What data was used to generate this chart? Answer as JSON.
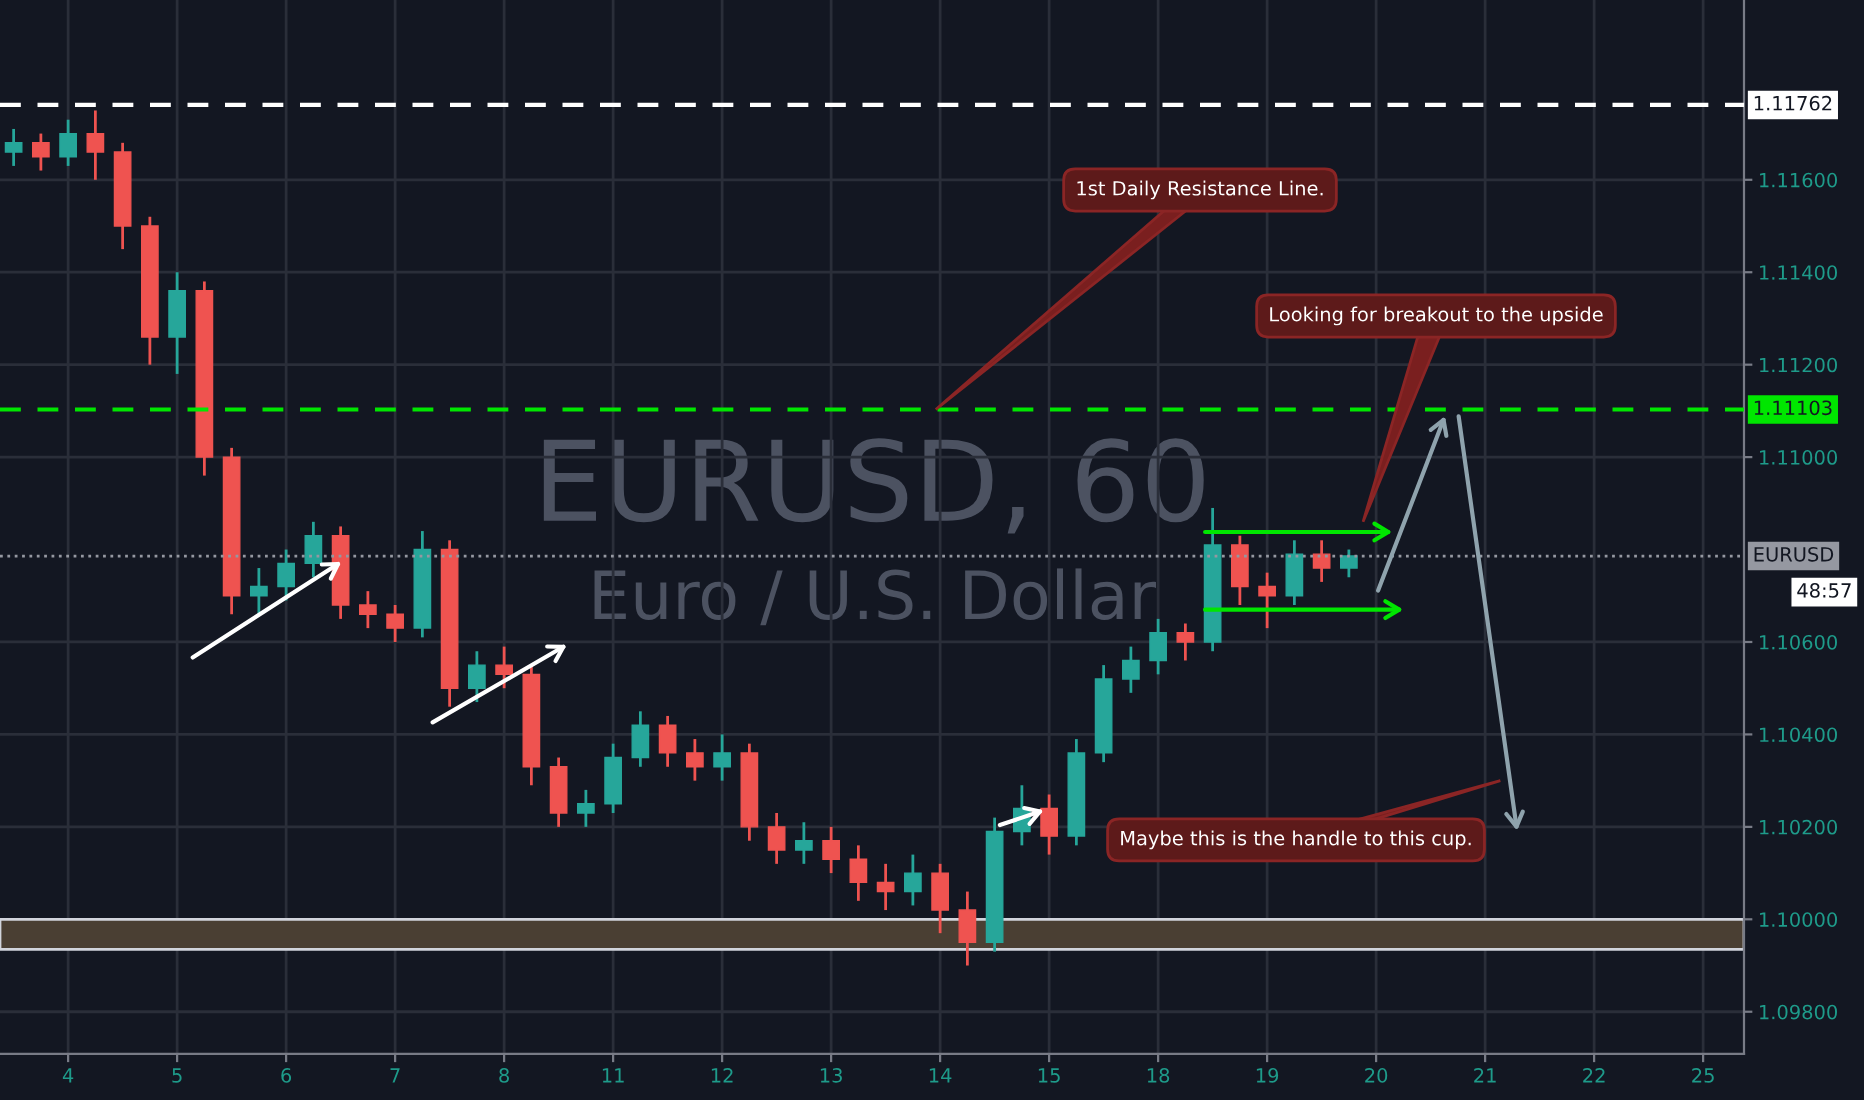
{
  "chart_data": {
    "type": "candlestick",
    "title": "EURUSD, 60",
    "subtitle": "Euro / U.S. Dollar",
    "categories": [
      null,
      null,
      "4",
      null,
      null,
      null,
      "5",
      null,
      null,
      null,
      "6",
      null,
      null,
      null,
      "7",
      null,
      null,
      null,
      "8",
      null,
      null,
      null,
      "11",
      null,
      null,
      null,
      "12",
      null,
      null,
      null,
      "13",
      null,
      null,
      null,
      "14",
      null,
      null,
      null,
      "15",
      null,
      null,
      null,
      "18",
      null,
      null,
      null,
      "19",
      null,
      null,
      null,
      "20",
      null,
      null,
      null,
      "21",
      null,
      null,
      null,
      "22",
      null,
      null,
      null,
      "25",
      null
    ],
    "ohlc": [
      [
        1.1166,
        1.1171,
        1.1163,
        1.1168
      ],
      [
        1.1168,
        1.117,
        1.1162,
        1.1165
      ],
      [
        1.1165,
        1.1173,
        1.1163,
        1.117
      ],
      [
        1.117,
        1.1175,
        1.116,
        1.1166
      ],
      [
        1.1166,
        1.1168,
        1.1145,
        1.115
      ],
      [
        1.115,
        1.1152,
        1.112,
        1.1126
      ],
      [
        1.1126,
        1.114,
        1.1118,
        1.1136
      ],
      [
        1.1136,
        1.1138,
        1.1096,
        1.11
      ],
      [
        1.11,
        1.1102,
        1.1066,
        1.107
      ],
      [
        1.107,
        1.1076,
        1.1066,
        1.1072
      ],
      [
        1.1072,
        1.108,
        1.1069,
        1.1077
      ],
      [
        1.1077,
        1.1086,
        1.1074,
        1.1083
      ],
      [
        1.1083,
        1.1085,
        1.1065,
        1.1068
      ],
      [
        1.1068,
        1.1071,
        1.1063,
        1.1066
      ],
      [
        1.1066,
        1.1068,
        1.106,
        1.1063
      ],
      [
        1.1063,
        1.1084,
        1.1061,
        1.108
      ],
      [
        1.108,
        1.1082,
        1.1046,
        1.105
      ],
      [
        1.105,
        1.1058,
        1.1047,
        1.1055
      ],
      [
        1.1055,
        1.1059,
        1.105,
        1.1053
      ],
      [
        1.1053,
        1.1055,
        1.1029,
        1.1033
      ],
      [
        1.1033,
        1.1035,
        1.102,
        1.1023
      ],
      [
        1.1023,
        1.1028,
        1.102,
        1.1025
      ],
      [
        1.1025,
        1.1038,
        1.1023,
        1.1035
      ],
      [
        1.1035,
        1.1045,
        1.1033,
        1.1042
      ],
      [
        1.1042,
        1.1044,
        1.1033,
        1.1036
      ],
      [
        1.1036,
        1.1039,
        1.103,
        1.1033
      ],
      [
        1.1033,
        1.104,
        1.103,
        1.1036
      ],
      [
        1.1036,
        1.1038,
        1.1017,
        1.102
      ],
      [
        1.102,
        1.1023,
        1.1012,
        1.1015
      ],
      [
        1.1015,
        1.1021,
        1.1012,
        1.1017
      ],
      [
        1.1017,
        1.102,
        1.101,
        1.1013
      ],
      [
        1.1013,
        1.1016,
        1.1004,
        1.1008
      ],
      [
        1.1008,
        1.1012,
        1.1002,
        1.1006
      ],
      [
        1.1006,
        1.1014,
        1.1003,
        1.101
      ],
      [
        1.101,
        1.1012,
        1.0997,
        1.1002
      ],
      [
        1.1002,
        1.1006,
        1.099,
        1.0995
      ],
      [
        1.0995,
        1.1022,
        1.0993,
        1.1019
      ],
      [
        1.1019,
        1.1029,
        1.1016,
        1.1024
      ],
      [
        1.1024,
        1.1027,
        1.1014,
        1.1018
      ],
      [
        1.1018,
        1.1039,
        1.1016,
        1.1036
      ],
      [
        1.1036,
        1.1055,
        1.1034,
        1.1052
      ],
      [
        1.1052,
        1.1059,
        1.1049,
        1.1056
      ],
      [
        1.1056,
        1.1065,
        1.1053,
        1.1062
      ],
      [
        1.1062,
        1.1064,
        1.1056,
        1.106
      ],
      [
        1.106,
        1.1089,
        1.1058,
        1.1081
      ],
      [
        1.1081,
        1.1083,
        1.1068,
        1.1072
      ],
      [
        1.1072,
        1.1075,
        1.1063,
        1.107
      ],
      [
        1.107,
        1.1082,
        1.1068,
        1.1079
      ],
      [
        1.1079,
        1.1082,
        1.1073,
        1.1076
      ],
      [
        1.1076,
        1.108,
        1.1074,
        1.10786
      ],
      null,
      null,
      null,
      null,
      null,
      null,
      null,
      null,
      null,
      null,
      null,
      null,
      null,
      null
    ],
    "ylim": [
      1.09709,
      1.11989
    ],
    "yticks": [
      {
        "value": 1.098,
        "label": "1.09800"
      },
      {
        "value": 1.1,
        "label": "1.10000"
      },
      {
        "value": 1.102,
        "label": "1.10200"
      },
      {
        "value": 1.104,
        "label": "1.10400"
      },
      {
        "value": 1.106,
        "label": "1.10600"
      },
      {
        "value": 1.11,
        "label": "1.11000"
      },
      {
        "value": 1.112,
        "label": "1.11200"
      },
      {
        "value": 1.114,
        "label": "1.11400"
      },
      {
        "value": 1.116,
        "label": "1.11600"
      }
    ],
    "grid": true,
    "ref_lines": [
      {
        "axis": "y",
        "value": 1.11762,
        "label": "1.11762",
        "color": "#ffffff",
        "line_style": "dashed"
      },
      {
        "axis": "y",
        "value": 1.11103,
        "label": "1.11103",
        "color": "#00e600",
        "line_style": "dashed"
      },
      {
        "axis": "y",
        "value": 1.10786,
        "label": "EURUSD",
        "color": "#9598a1",
        "line_style": "dotted"
      }
    ],
    "bands": [
      {
        "axis": "y",
        "from": 1.09935,
        "to": 1.1,
        "color": "#4a3f33"
      }
    ],
    "annotations": [
      "1st Daily Resistance Line.",
      "Looking for breakout to the upside",
      "Maybe this is the handle to this cup.",
      "48:57"
    ]
  }
}
